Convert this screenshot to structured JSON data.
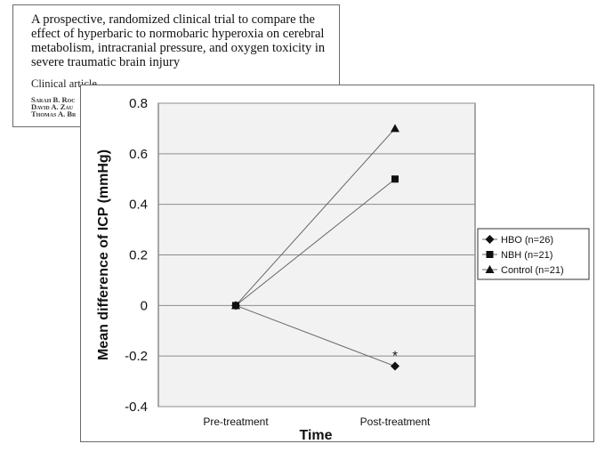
{
  "paper": {
    "title_lines": [
      "A prospective, randomized clinical trial to compare the",
      "effect of hyperbaric to normobaric hyperoxia on cerebral",
      "metabolism, intracranial pressure, and oxygen toxicity in",
      "severe traumatic brain injury"
    ],
    "article_type": "Clinical article",
    "authors_visible": [
      "Sarah B. Roc",
      "David A. Zau",
      "Thomas A. Br"
    ]
  },
  "chart_data": {
    "type": "line",
    "categories": [
      "Pre-treatment",
      "Post-treatment"
    ],
    "series": [
      {
        "name": "HBO (n=26)",
        "values": [
          0,
          -0.24
        ],
        "marker": "diamond"
      },
      {
        "name": "NBH (n=21)",
        "values": [
          0,
          0.5
        ],
        "marker": "square"
      },
      {
        "name": "Control (n=21)",
        "values": [
          0,
          0.7
        ],
        "marker": "triangle"
      }
    ],
    "xlabel": "Time",
    "ylabel": "Mean difference of ICP (mmHg)",
    "ylim": [
      -0.4,
      0.8
    ],
    "yticks": [
      "0.8",
      "0.6",
      "0.4",
      "0.2",
      "0",
      "-0.2",
      "-0.4"
    ],
    "ytick_values": [
      0.8,
      0.6,
      0.4,
      0.2,
      0,
      -0.2,
      -0.4
    ],
    "grid": true,
    "legend_position": "right",
    "annotations": [
      {
        "text": "*",
        "category": "Post-treatment",
        "series": "HBO (n=26)"
      }
    ],
    "colors": {
      "line": "#666666",
      "marker": "#111111",
      "plot_bg": "#f2f2f2",
      "grid": "#8c8c8c"
    }
  }
}
